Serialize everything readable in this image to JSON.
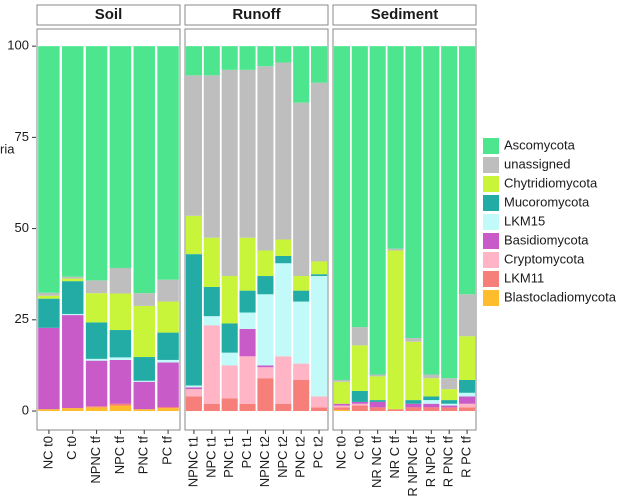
{
  "chart_data": {
    "type": "stacked_bar_facets",
    "y_label": "ria",
    "ylim": [
      -5.2,
      104.7
    ],
    "yticks": [
      0,
      25,
      50,
      75,
      100
    ],
    "panels": [
      {
        "title": "Soil",
        "categories": [
          "NC t0",
          "C t0",
          "NPNC tf",
          "NPC tf",
          "PNC tf",
          "PC tf"
        ]
      },
      {
        "title": "Runoff",
        "categories": [
          "NPNC t1",
          "NPC t1",
          "PNC t1",
          "PC t1",
          "NPNC t2",
          "NPC t2",
          "PNC t2",
          "PC t2"
        ]
      },
      {
        "title": "Sediment",
        "categories": [
          "NC t0",
          "C t0",
          "NR NC tf",
          "NR C tf",
          "R NPNC tf",
          "R NPC tf",
          "R PNC tf",
          "R PC tf"
        ]
      }
    ],
    "series": [
      {
        "name": "Ascomycota",
        "color": "#4de68f",
        "values": [
          [
            67.6,
            63.2,
            64.2,
            60.8,
            67.7,
            64
          ],
          [
            8,
            8,
            6.5,
            6.5,
            5.5,
            4.5,
            15.5,
            10
          ],
          [
            91.5,
            77,
            90,
            55.5,
            80,
            90,
            91,
            68
          ]
        ]
      },
      {
        "name": "unassigned",
        "color": "#bebebe",
        "values": [
          [
            0.8,
            0.5,
            3.5,
            7,
            3.5,
            6
          ],
          [
            38.5,
            44.5,
            56.5,
            46,
            50.5,
            48.5,
            47.5,
            49
          ],
          [
            0.5,
            5,
            0.5,
            0.5,
            1,
            1,
            3,
            11.5
          ]
        ]
      },
      {
        "name": "Chytridiomycota",
        "color": "#c8f53a",
        "values": [
          [
            0.8,
            0.7,
            8,
            10,
            14,
            8.5
          ],
          [
            10.5,
            13.5,
            13,
            14.5,
            7,
            4.5,
            4,
            3.5
          ],
          [
            6,
            12.5,
            6.5,
            43.5,
            16,
            5,
            3,
            12
          ]
        ]
      },
      {
        "name": "Mucoromycota",
        "color": "#23aca5",
        "values": [
          [
            8,
            9,
            10,
            7.5,
            6.5,
            7.5
          ],
          [
            36,
            8,
            8,
            6,
            5,
            2,
            3,
            0.5
          ],
          [
            0,
            3,
            0.5,
            0,
            1,
            1,
            1,
            3.5
          ]
        ]
      },
      {
        "name": "LKM15",
        "color": "#c2fafa",
        "values": [
          [
            0,
            0.3,
            0.5,
            0.7,
            0.3,
            0.7
          ],
          [
            0.5,
            2.5,
            3.5,
            4.5,
            19.5,
            25.5,
            17,
            33
          ],
          [
            0,
            0,
            0,
            0,
            0,
            1,
            0.5,
            1
          ]
        ]
      },
      {
        "name": "Basidiomycota",
        "color": "#c95bc9",
        "values": [
          [
            22.3,
            25.5,
            12.5,
            12,
            7.5,
            12.2
          ],
          [
            0.5,
            0,
            0,
            7.5,
            0.5,
            0,
            0,
            0
          ],
          [
            0.5,
            0.5,
            1.5,
            0,
            1,
            1,
            0.5,
            2
          ]
        ]
      },
      {
        "name": "Cryptomycota",
        "color": "#ffb5c5",
        "values": [
          [
            0,
            0,
            0,
            0,
            0,
            0
          ],
          [
            2,
            21.5,
            9,
            13,
            3,
            13,
            4.5,
            3
          ],
          [
            0.5,
            0.5,
            0,
            0,
            0,
            0,
            0,
            1
          ]
        ]
      },
      {
        "name": "LKM11",
        "color": "#f77f7a",
        "values": [
          [
            0,
            0,
            0.3,
            0.5,
            0,
            0.3
          ],
          [
            4,
            2,
            3.5,
            2,
            9,
            2,
            8.5,
            1
          ],
          [
            0.7,
            1.5,
            1,
            0.5,
            1,
            1,
            1,
            1
          ]
        ]
      },
      {
        "name": "Blastocladiomycota",
        "color": "#ffbd2e",
        "values": [
          [
            0.5,
            0.8,
            1,
            1.5,
            0.5,
            0.8
          ],
          [
            0,
            0,
            0,
            0,
            0,
            0,
            0,
            0
          ],
          [
            0.3,
            0,
            0,
            0,
            0,
            0,
            0,
            0
          ]
        ]
      }
    ]
  }
}
